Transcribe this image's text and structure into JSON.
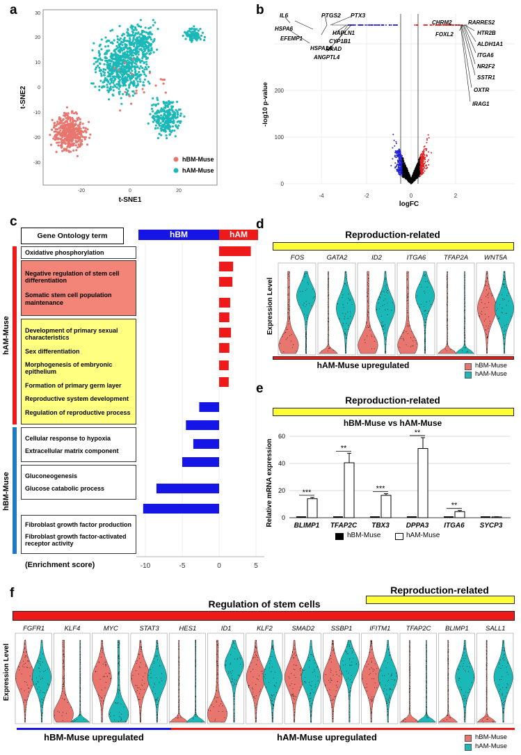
{
  "panels": {
    "a": "a",
    "b": "b",
    "c": "c",
    "d": "d",
    "e": "e",
    "f": "f"
  },
  "colors": {
    "hbm": "#e8766e",
    "ham": "#1bb8b8",
    "up": "#e52222",
    "down": "#1f1fd1",
    "yellow": "#ffff33",
    "bar_red": "#ee1a1a",
    "bar_blue": "#1515e6"
  },
  "panel_a": {
    "xlabel": "t-SNE1",
    "ylabel": "t-SNE2",
    "xticks": [
      "-20",
      "0",
      "20"
    ],
    "yticks": [
      "30",
      "20",
      "10",
      "0",
      "-10",
      "-20",
      "-30"
    ],
    "legend": [
      "hBM-Muse",
      "hAM-Muse"
    ]
  },
  "panel_b": {
    "xlabel": "logFC",
    "ylabel": "-log10 p-value",
    "xticks": [
      "-4",
      "-2",
      "0",
      "2"
    ],
    "yticks": [
      "0",
      "100",
      "200"
    ],
    "labels_left": [
      "IL6",
      "PTGS2",
      "PTX3",
      "HSPA6",
      "EFEMP1",
      "HSPA1A",
      "HAPLN1",
      "CYP1B1",
      "RRAD",
      "ANGPTL4"
    ],
    "labels_right": [
      "CHRM2",
      "RARRES2",
      "FOXL2",
      "HTR2B",
      "ALDH1A1",
      "ITGA6",
      "NR2F2",
      "SSTR1",
      "OXTR",
      "IRAG1"
    ]
  },
  "panel_c": {
    "header": "Gene Ontology term",
    "legend_hbm": "hBM",
    "legend_ham": "hAM",
    "group_ham": "hAM-Muse",
    "group_hbm": "hBM-Muse",
    "xlabel": "(Enrichment score)",
    "xticks": [
      "-10",
      "-5",
      "0",
      "5"
    ],
    "terms": [
      {
        "label": "Oxidative phosphorylation",
        "score": 4.3
      },
      {
        "label": "Negative regulation of stem cell differentiation",
        "score": 1.9
      },
      {
        "label": "Somatic stem cell population maintenance",
        "score": 1.8
      },
      {
        "label": "Development of primary sexual characteristics",
        "score": 1.5
      },
      {
        "label": "Sex differentiation",
        "score": 1.4
      },
      {
        "label": "Morphogenesis of embryonic epithelium",
        "score": 1.6
      },
      {
        "label": "Formation of primary germ layer",
        "score": 1.4
      },
      {
        "label": "Reproductive system development",
        "score": 1.3
      },
      {
        "label": "Regulation of reproductive process",
        "score": 1.3
      },
      {
        "label": "Cellular response to hypoxia",
        "score": -2.7
      },
      {
        "label": "Extracellular matrix component",
        "score": -4.5
      },
      {
        "label": "Gluconeogenesis",
        "score": -3.5
      },
      {
        "label": "Glucose catabolic process",
        "score": -5.0
      },
      {
        "label": "Fibroblast growth factor production",
        "score": -8.5
      },
      {
        "label": "Fibroblast growth factor-activated receptor activity",
        "score": -10.3
      }
    ]
  },
  "panel_d": {
    "title": "Reproduction-related",
    "genes": [
      "FOS",
      "GATA2",
      "ID2",
      "ITGA6",
      "TFAP2A",
      "WNT5A"
    ],
    "ylabel": "Expression Level",
    "footer": "hAM-Muse upregulated",
    "legend": [
      "hBM-Muse",
      "hAM-Muse"
    ]
  },
  "panel_e": {
    "title": "Reproduction-related",
    "subtitle": "hBM-Muse vs hAM-Muse",
    "ylabel": "Relative mRNA expression",
    "legend": [
      "hBM-Muse",
      "hAM-Muse"
    ],
    "chart_data": {
      "type": "bar",
      "categories": [
        "BLIMP1",
        "TFAP2C",
        "TBX3",
        "DPPA3",
        "ITGA6",
        "SYCP3"
      ],
      "series": [
        {
          "name": "hBM-Muse",
          "values": [
            1,
            1,
            1,
            1,
            1,
            1
          ]
        },
        {
          "name": "hAM-Muse",
          "values": [
            14,
            40.5,
            16.5,
            51,
            4.5,
            0.6
          ]
        }
      ],
      "errors": [
        1,
        7,
        1.2,
        8,
        0.8,
        0.1
      ],
      "significance": [
        "***",
        "**",
        "***",
        "**",
        "**",
        ""
      ],
      "yticks": [
        "0",
        "20",
        "40",
        "60"
      ],
      "ylim": [
        0,
        60
      ]
    }
  },
  "panel_f": {
    "title": "Regulation of stem cells",
    "repro": "Reproduction-related",
    "genes": [
      "FGFR1",
      "KLF4",
      "MYC",
      "STAT3",
      "HES1",
      "ID1",
      "KLF2",
      "SMAD2",
      "SSBP1",
      "IFITM1",
      "TFAP2C",
      "BLIMP1",
      "SALL1"
    ],
    "ylabel": "Expression Level",
    "footer_left": "hBM-Muse upregulated",
    "footer_right": "hAM-Muse upregulated",
    "legend": [
      "hBM-Muse",
      "hAM-Muse"
    ]
  }
}
